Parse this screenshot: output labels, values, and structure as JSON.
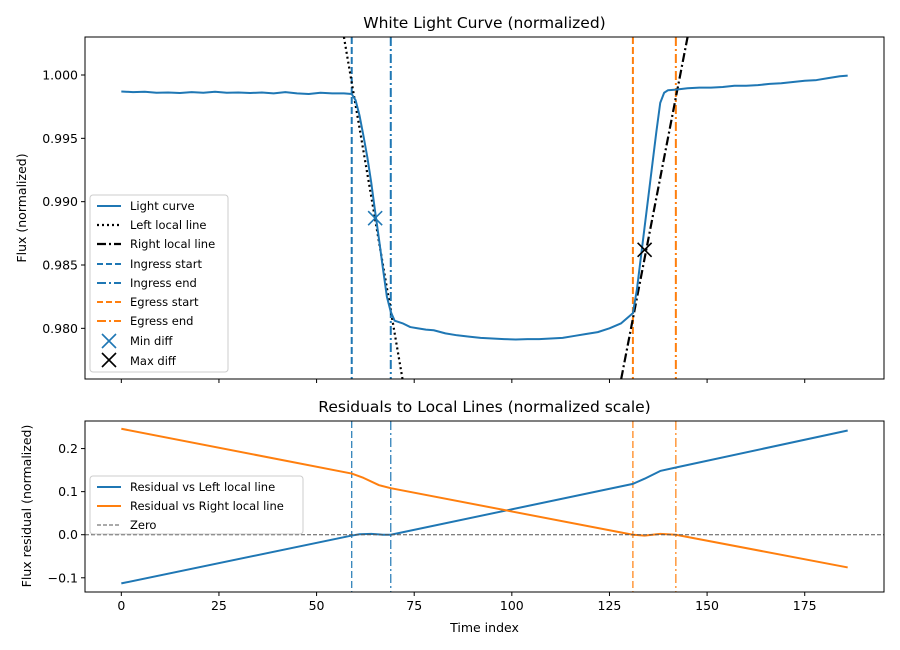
{
  "chart_data": [
    {
      "type": "line",
      "title": "White Light Curve (normalized)",
      "xlabel": "",
      "ylabel": "Flux (normalized)",
      "xlim": [
        -9.3,
        195.3
      ],
      "ylim": [
        0.976,
        1.003
      ],
      "yticks": [
        0.98,
        0.985,
        0.99,
        0.995,
        1.0
      ],
      "ytick_labels": [
        "0.980",
        "0.985",
        "0.990",
        "0.995",
        "1.000"
      ],
      "legend_position": "center-left",
      "legend": [
        "Light curve",
        "Left local line",
        "Right local line",
        "Ingress start",
        "Ingress end",
        "Egress start",
        "Egress end",
        "Min diff",
        "Max diff"
      ],
      "vlines": [
        {
          "name": "Ingress start",
          "x": 59,
          "color": "#1f77b4",
          "style": "dashed"
        },
        {
          "name": "Ingress end",
          "x": 69,
          "color": "#1f77b4",
          "style": "dashdot"
        },
        {
          "name": "Egress start",
          "x": 131,
          "color": "#ff7f0e",
          "style": "dashed"
        },
        {
          "name": "Egress end",
          "x": 142,
          "color": "#ff7f0e",
          "style": "dashdot"
        }
      ],
      "lines": [
        {
          "name": "Left local line",
          "x": [
            57,
            72
          ],
          "y": [
            1.003,
            0.976
          ],
          "color": "#000000",
          "style": "dotted"
        },
        {
          "name": "Right local line",
          "x": [
            128,
            145
          ],
          "y": [
            0.976,
            1.003
          ],
          "color": "#000000",
          "style": "dashdot"
        }
      ],
      "markers": [
        {
          "name": "Min diff",
          "x": 65,
          "y": 0.9887,
          "color": "#1f77b4"
        },
        {
          "name": "Max diff",
          "x": 134,
          "y": 0.9862,
          "color": "#000000"
        }
      ],
      "series": [
        {
          "name": "Light curve",
          "color": "#1f77b4",
          "points": [
            [
              0,
              0.9987
            ],
            [
              3,
              0.99865
            ],
            [
              6,
              0.99868
            ],
            [
              9,
              0.9986
            ],
            [
              12,
              0.99862
            ],
            [
              15,
              0.99858
            ],
            [
              18,
              0.99865
            ],
            [
              21,
              0.9986
            ],
            [
              24,
              0.99868
            ],
            [
              27,
              0.9986
            ],
            [
              30,
              0.99862
            ],
            [
              33,
              0.99858
            ],
            [
              36,
              0.99862
            ],
            [
              39,
              0.99855
            ],
            [
              42,
              0.99865
            ],
            [
              45,
              0.99855
            ],
            [
              48,
              0.9985
            ],
            [
              51,
              0.9986
            ],
            [
              54,
              0.99855
            ],
            [
              57,
              0.99855
            ],
            [
              59,
              0.9985
            ],
            [
              60,
              0.998
            ],
            [
              61,
              0.9968
            ],
            [
              62,
              0.9952
            ],
            [
              63,
              0.9935
            ],
            [
              64,
              0.9915
            ],
            [
              65,
              0.9892
            ],
            [
              66,
              0.987
            ],
            [
              67,
              0.9847
            ],
            [
              68,
              0.9825
            ],
            [
              69,
              0.9813
            ],
            [
              70,
              0.9806
            ],
            [
              72,
              0.9804
            ],
            [
              74,
              0.9801
            ],
            [
              76,
              0.98
            ],
            [
              78,
              0.9799
            ],
            [
              80,
              0.97985
            ],
            [
              83,
              0.9796
            ],
            [
              86,
              0.97945
            ],
            [
              89,
              0.97935
            ],
            [
              92,
              0.97925
            ],
            [
              95,
              0.9792
            ],
            [
              98,
              0.97915
            ],
            [
              101,
              0.97912
            ],
            [
              104,
              0.97915
            ],
            [
              107,
              0.97915
            ],
            [
              110,
              0.9792
            ],
            [
              113,
              0.97925
            ],
            [
              116,
              0.9794
            ],
            [
              119,
              0.97955
            ],
            [
              122,
              0.9797
            ],
            [
              125,
              0.98
            ],
            [
              128,
              0.9804
            ],
            [
              131,
              0.9812
            ],
            [
              132,
              0.983
            ],
            [
              133,
              0.9855
            ],
            [
              134,
              0.988
            ],
            [
              135,
              0.9905
            ],
            [
              136,
              0.993
            ],
            [
              137,
              0.9955
            ],
            [
              138,
              0.9978
            ],
            [
              139,
              0.9986
            ],
            [
              140,
              0.9988
            ],
            [
              142,
              0.99885
            ],
            [
              145,
              0.99895
            ],
            [
              148,
              0.999
            ],
            [
              151,
              0.999
            ],
            [
              154,
              0.99905
            ],
            [
              157,
              0.99915
            ],
            [
              160,
              0.99915
            ],
            [
              163,
              0.9992
            ],
            [
              166,
              0.9993
            ],
            [
              169,
              0.99935
            ],
            [
              172,
              0.99945
            ],
            [
              175,
              0.99955
            ],
            [
              178,
              0.9996
            ],
            [
              181,
              0.99975
            ],
            [
              184,
              0.9999
            ],
            [
              186,
              0.99995
            ]
          ]
        }
      ]
    },
    {
      "type": "line",
      "title": "Residuals to Local Lines (normalized scale)",
      "xlabel": "Time index",
      "ylabel": "Flux residual (normalized)",
      "xlim": [
        -9.3,
        195.3
      ],
      "ylim": [
        -0.133,
        0.264
      ],
      "xticks": [
        0,
        25,
        50,
        75,
        100,
        125,
        150,
        175
      ],
      "xtick_labels": [
        "0",
        "25",
        "50",
        "75",
        "100",
        "125",
        "150",
        "175"
      ],
      "yticks": [
        -0.1,
        0.0,
        0.1,
        0.2
      ],
      "ytick_labels": [
        "−0.1",
        "0.0",
        "0.1",
        "0.2"
      ],
      "legend_position": "center-left",
      "legend": [
        "Residual vs Left local line",
        "Residual vs Right local line",
        "Zero"
      ],
      "vlines": [
        {
          "x": 59,
          "color": "#1f77b4",
          "style": "dashed"
        },
        {
          "x": 69,
          "color": "#1f77b4",
          "style": "dashdot"
        },
        {
          "x": 131,
          "color": "#ff7f0e",
          "style": "dashed"
        },
        {
          "x": 142,
          "color": "#ff7f0e",
          "style": "dashdot"
        }
      ],
      "series": [
        {
          "name": "Residual vs Left local line",
          "color": "#1f77b4",
          "points": [
            [
              0,
              -0.113
            ],
            [
              59,
              -0.002
            ],
            [
              61,
              0.001
            ],
            [
              64,
              0.002
            ],
            [
              67,
              0.0
            ],
            [
              69,
              0.0
            ],
            [
              131,
              0.118
            ],
            [
              134,
              0.13
            ],
            [
              138,
              0.148
            ],
            [
              142,
              0.156
            ],
            [
              186,
              0.242
            ]
          ]
        },
        {
          "name": "Residual vs Right local line",
          "color": "#ff7f0e",
          "points": [
            [
              0,
              0.246
            ],
            [
              59,
              0.142
            ],
            [
              62,
              0.132
            ],
            [
              66,
              0.115
            ],
            [
              69,
              0.108
            ],
            [
              131,
              0.0
            ],
            [
              134,
              -0.002
            ],
            [
              138,
              0.002
            ],
            [
              142,
              0.0
            ],
            [
              186,
              -0.076
            ]
          ]
        },
        {
          "name": "Zero",
          "color": "#555555",
          "style": "dashed",
          "points": [
            [
              -9.3,
              0
            ],
            [
              195.3,
              0
            ]
          ]
        }
      ]
    }
  ]
}
